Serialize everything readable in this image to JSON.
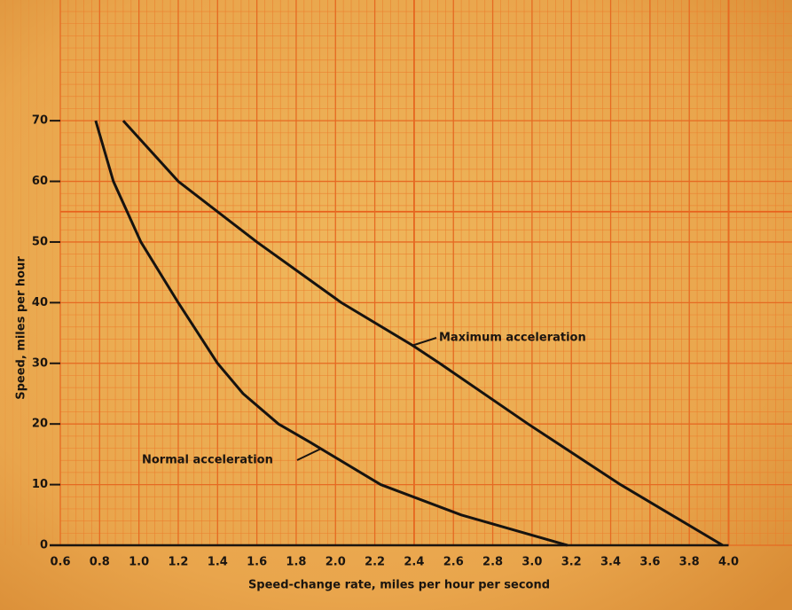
{
  "chart_data": {
    "type": "line",
    "x_label": "Speed-change rate, miles per hour per second",
    "y_label": "Speed, miles per hour",
    "xlim": [
      0.6,
      4.3
    ],
    "ylim": [
      0,
      88
    ],
    "xticks": [
      0.6,
      0.8,
      {
        "value": 1,
        "label": "1.0"
      },
      1.2,
      1.4,
      1.6,
      1.8,
      {
        "value": 2,
        "label": "2.0"
      },
      2.2,
      2.4,
      2.6,
      2.8,
      {
        "value": 3,
        "label": "3.0"
      },
      3.2,
      3.4,
      3.6,
      3.8,
      {
        "value": 4,
        "label": "4.0"
      }
    ],
    "yticks": [
      0,
      10,
      20,
      30,
      40,
      50,
      60,
      70
    ],
    "grid": true,
    "series": [
      {
        "name": "Normal acceleration",
        "color": "#161310",
        "x": [
          0.78,
          0.87,
          1.01,
          1.2,
          1.4,
          1.53,
          1.71,
          1.87,
          2.23,
          2.64,
          3.18
        ],
        "values": [
          70,
          60,
          50,
          40,
          30,
          25,
          20,
          17,
          10,
          5,
          0
        ]
      },
      {
        "name": "Maximum acceleration",
        "color": "#161310",
        "x": [
          0.92,
          1.2,
          1.6,
          2.03,
          2.39,
          2.53,
          2.98,
          3.45,
          3.97
        ],
        "values": [
          70,
          60,
          50,
          40,
          33,
          30,
          20,
          10,
          0
        ]
      }
    ]
  }
}
